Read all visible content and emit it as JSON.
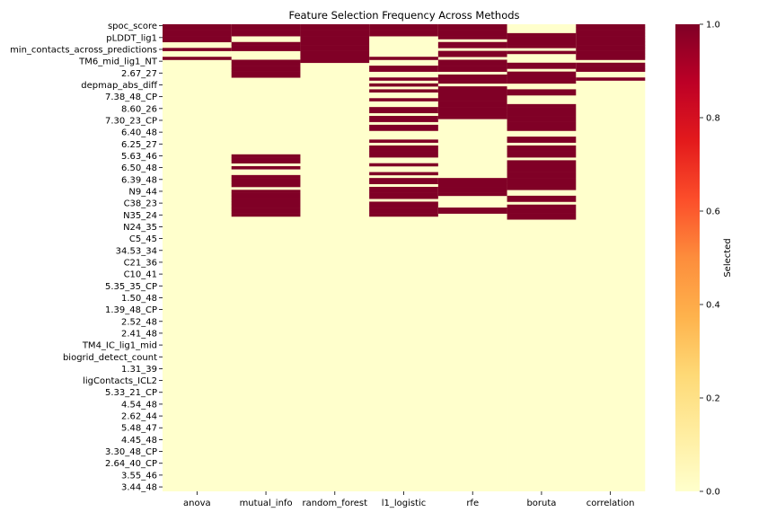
{
  "chart_data": {
    "type": "heatmap",
    "title": "Feature Selection Frequency Across Methods",
    "methods": [
      "anova",
      "mutual_info",
      "random_forest",
      "l1_logistic",
      "rfe",
      "boruta",
      "correlation"
    ],
    "y_tick_labels": [
      "spoc_score",
      "pLDDT_lig1",
      "min_contacts_across_predictions",
      "TM6_mid_lig1_NT",
      "2.67_27",
      "depmap_abs_diff",
      "7.38_48_CP",
      "8.60_26",
      "7.30_23_CP",
      "6.40_48",
      "6.25_27",
      "5.63_46",
      "6.50_48",
      "6.39_48",
      "N9_44",
      "C38_23",
      "N35_24",
      "N24_35",
      "C5_45",
      "34.53_34",
      "C21_36",
      "C10_41",
      "5.35_35_CP",
      "1.50_48",
      "1.39_48_CP",
      "2.52_48",
      "2.41_48",
      "TM4_IC_lig1_mid",
      "biogrid_detect_count",
      "1.31_39",
      "ligContacts_ICL2",
      "5.33_21_CP",
      "4.54_48",
      "2.62_44",
      "5.48_47",
      "4.45_48",
      "3.30_48_CP",
      "2.64_40_CP",
      "3.55_46",
      "3.44_48"
    ],
    "tick_row_step": 4,
    "n_rows": 158,
    "selected_rows": {
      "anova": [
        0,
        1,
        2,
        3,
        4,
        5,
        8,
        11
      ],
      "mutual_info": [
        0,
        1,
        2,
        3,
        6,
        7,
        8,
        12,
        13,
        14,
        15,
        16,
        17,
        44,
        45,
        46,
        48,
        51,
        52,
        53,
        54,
        56,
        57,
        58,
        59,
        60,
        61,
        62,
        63,
        64
      ],
      "random_forest": [
        0,
        1,
        2,
        3,
        4,
        5,
        6,
        7,
        8,
        9,
        10,
        11,
        12
      ],
      "l1_logistic": [
        0,
        1,
        2,
        3,
        11,
        14,
        15,
        18,
        20,
        22,
        25,
        28,
        29,
        31,
        32,
        34,
        35,
        39,
        41,
        42,
        43,
        44,
        47,
        50,
        52,
        53,
        55,
        56,
        57,
        58,
        60,
        61,
        62,
        63,
        64
      ],
      "rfe": [
        0,
        1,
        2,
        3,
        4,
        6,
        7,
        9,
        10,
        12,
        13,
        14,
        15,
        17,
        18,
        19,
        21,
        22,
        23,
        24,
        25,
        26,
        27,
        28,
        29,
        30,
        31,
        52,
        53,
        54,
        55,
        56,
        57,
        62,
        63
      ],
      "boruta": [
        3,
        4,
        5,
        6,
        7,
        9,
        13,
        14,
        16,
        17,
        18,
        19,
        22,
        23,
        27,
        28,
        29,
        30,
        31,
        32,
        33,
        34,
        35,
        38,
        39,
        41,
        42,
        43,
        44,
        46,
        47,
        48,
        49,
        50,
        51,
        52,
        53,
        54,
        55,
        58,
        59,
        61,
        62,
        63,
        64,
        65
      ],
      "correlation": [
        0,
        1,
        2,
        3,
        4,
        5,
        6,
        7,
        8,
        9,
        10,
        11,
        13,
        14,
        15,
        18
      ]
    },
    "value_range": [
      0.0,
      1.0
    ],
    "colorbar": {
      "label": "Selected",
      "ticks": [
        "0.0",
        "0.2",
        "0.4",
        "0.6",
        "0.8",
        "1.0"
      ],
      "colormap": "YlOrRd"
    },
    "colors": {
      "unselected": "#ffffcc",
      "selected": "#800026"
    }
  }
}
